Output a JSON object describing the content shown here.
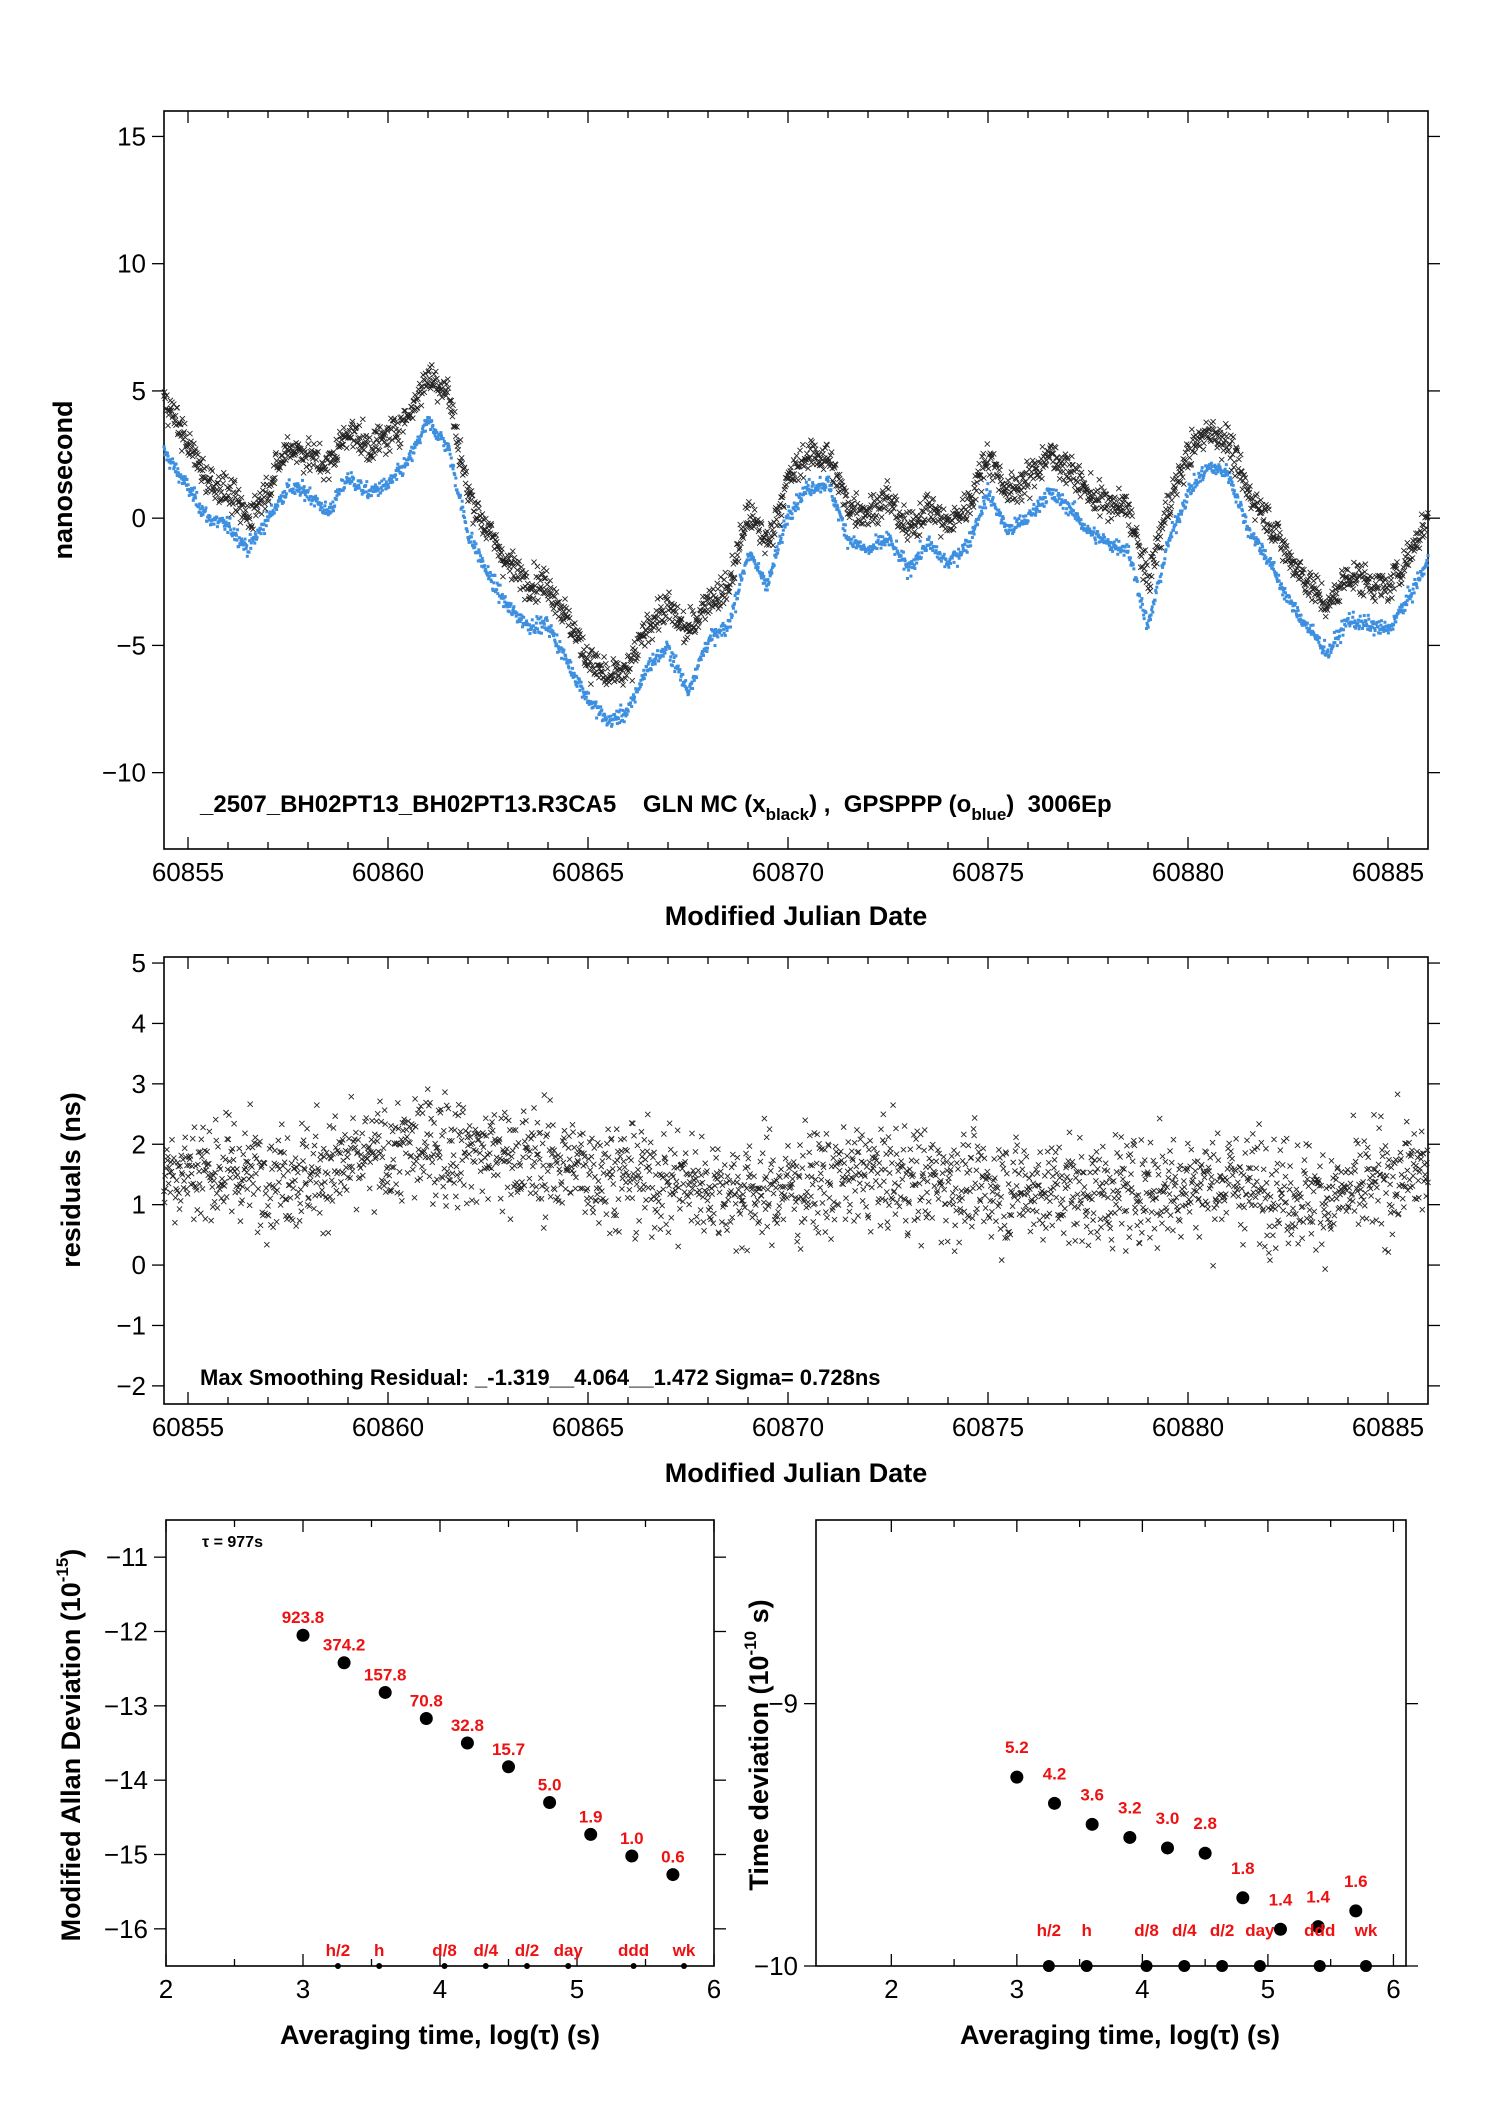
{
  "chart_data": [
    {
      "type": "scatter",
      "xlabel": "Modified Julian Date",
      "ylabel": "nanosecond",
      "xlim": [
        60854.4,
        60886.0
      ],
      "ylim": [
        -13,
        16
      ],
      "xticks": [
        60855,
        60860,
        60865,
        60870,
        60875,
        60880,
        60885
      ],
      "yticks": [
        -10,
        -5,
        0,
        5,
        10,
        15
      ],
      "annotation": {
        "prefix": "_2507_BH02PT13_BH02PT13.R3CA5    GLN MC (x",
        "sub1": "black",
        "mid": ") ,  GPSPPP (o",
        "sub2": "blue",
        "suffix": ")  3006Ep"
      },
      "series": [
        {
          "name": "GLN MC",
          "marker": "x",
          "color": "#222222",
          "points": [
            [
              60854.4,
              4.8
            ],
            [
              60855.0,
              2.9
            ],
            [
              60855.5,
              1.5
            ],
            [
              60856.0,
              1.0
            ],
            [
              60856.5,
              0.0
            ],
            [
              60857.0,
              1.2
            ],
            [
              60857.5,
              2.8
            ],
            [
              60858.0,
              2.5
            ],
            [
              60858.5,
              2.0
            ],
            [
              60859.0,
              3.5
            ],
            [
              60859.5,
              2.8
            ],
            [
              60860.0,
              3.2
            ],
            [
              60860.5,
              4.0
            ],
            [
              60861.0,
              5.6
            ],
            [
              60861.5,
              5.0
            ],
            [
              60862.0,
              1.0
            ],
            [
              60862.5,
              -0.5
            ],
            [
              60863.0,
              -1.8
            ],
            [
              60863.5,
              -2.5
            ],
            [
              60864.0,
              -2.6
            ],
            [
              60864.5,
              -4.0
            ],
            [
              60865.0,
              -5.5
            ],
            [
              60865.5,
              -6.3
            ],
            [
              60866.0,
              -6.0
            ],
            [
              60866.5,
              -4.2
            ],
            [
              60867.0,
              -3.5
            ],
            [
              60867.5,
              -4.5
            ],
            [
              60868.0,
              -3.2
            ],
            [
              60868.5,
              -2.8
            ],
            [
              60869.0,
              0.2
            ],
            [
              60869.5,
              -1.0
            ],
            [
              60870.0,
              1.5
            ],
            [
              60870.5,
              2.5
            ],
            [
              60871.0,
              2.4
            ],
            [
              60871.5,
              0.5
            ],
            [
              60872.0,
              0.2
            ],
            [
              60872.5,
              0.8
            ],
            [
              60873.0,
              -0.5
            ],
            [
              60873.5,
              0.5
            ],
            [
              60874.0,
              -0.3
            ],
            [
              60874.5,
              0.5
            ],
            [
              60875.0,
              2.5
            ],
            [
              60875.5,
              1.0
            ],
            [
              60876.0,
              1.5
            ],
            [
              60876.5,
              2.5
            ],
            [
              60877.0,
              2.0
            ],
            [
              60877.5,
              1.0
            ],
            [
              60878.0,
              0.5
            ],
            [
              60878.5,
              0.4
            ],
            [
              60879.0,
              -2.5
            ],
            [
              60879.5,
              0.5
            ],
            [
              60880.0,
              2.5
            ],
            [
              60880.5,
              3.5
            ],
            [
              60881.0,
              3.0
            ],
            [
              60881.5,
              1.0
            ],
            [
              60882.0,
              0.0
            ],
            [
              60882.5,
              -1.5
            ],
            [
              60883.0,
              -2.5
            ],
            [
              60883.5,
              -3.5
            ],
            [
              60884.0,
              -2.2
            ],
            [
              60884.5,
              -2.5
            ],
            [
              60885.0,
              -2.8
            ],
            [
              60885.5,
              -1.5
            ],
            [
              60886.0,
              0.0
            ]
          ]
        },
        {
          "name": "GPSPPP",
          "marker": "o",
          "color": "#3d8fe0",
          "points": [
            [
              60854.4,
              2.6
            ],
            [
              60855.0,
              1.2
            ],
            [
              60855.5,
              0.0
            ],
            [
              60856.0,
              -0.3
            ],
            [
              60856.5,
              -1.2
            ],
            [
              60857.0,
              0.0
            ],
            [
              60857.5,
              1.2
            ],
            [
              60858.0,
              1.0
            ],
            [
              60858.5,
              0.2
            ],
            [
              60859.0,
              1.6
            ],
            [
              60859.5,
              1.0
            ],
            [
              60860.0,
              1.3
            ],
            [
              60860.5,
              2.2
            ],
            [
              60861.0,
              3.8
            ],
            [
              60861.5,
              2.8
            ],
            [
              60862.0,
              -0.6
            ],
            [
              60862.5,
              -2.2
            ],
            [
              60863.0,
              -3.5
            ],
            [
              60863.5,
              -4.2
            ],
            [
              60864.0,
              -4.2
            ],
            [
              60864.5,
              -5.7
            ],
            [
              60865.0,
              -7.1
            ],
            [
              60865.5,
              -8.0
            ],
            [
              60866.0,
              -7.6
            ],
            [
              60866.5,
              -5.8
            ],
            [
              60867.0,
              -5.1
            ],
            [
              60867.5,
              -6.8
            ],
            [
              60868.0,
              -4.8
            ],
            [
              60868.5,
              -4.3
            ],
            [
              60869.0,
              -1.4
            ],
            [
              60869.5,
              -2.6
            ],
            [
              60870.0,
              0.2
            ],
            [
              60870.5,
              1.2
            ],
            [
              60871.0,
              1.4
            ],
            [
              60871.5,
              -0.8
            ],
            [
              60872.0,
              -1.3
            ],
            [
              60872.5,
              -0.8
            ],
            [
              60873.0,
              -2.0
            ],
            [
              60873.5,
              -1.0
            ],
            [
              60874.0,
              -1.8
            ],
            [
              60874.5,
              -1.0
            ],
            [
              60875.0,
              1.0
            ],
            [
              60875.5,
              -0.5
            ],
            [
              60876.0,
              0.0
            ],
            [
              60876.5,
              1.0
            ],
            [
              60877.0,
              0.5
            ],
            [
              60877.5,
              -0.5
            ],
            [
              60878.0,
              -1.0
            ],
            [
              60878.5,
              -1.2
            ],
            [
              60879.0,
              -4.3
            ],
            [
              60879.5,
              -1.0
            ],
            [
              60880.0,
              1.0
            ],
            [
              60880.5,
              2.0
            ],
            [
              60881.0,
              1.8
            ],
            [
              60881.5,
              -0.4
            ],
            [
              60882.0,
              -1.6
            ],
            [
              60882.5,
              -3.2
            ],
            [
              60883.0,
              -4.3
            ],
            [
              60883.5,
              -5.3
            ],
            [
              60884.0,
              -4.0
            ],
            [
              60884.5,
              -4.2
            ],
            [
              60885.0,
              -4.4
            ],
            [
              60885.5,
              -3.2
            ],
            [
              60886.0,
              -1.7
            ]
          ]
        }
      ]
    },
    {
      "type": "scatter",
      "xlabel": "Modified Julian Date",
      "ylabel": "residuals (ns)",
      "xlim": [
        60854.4,
        60886.0
      ],
      "ylim": [
        -2.3,
        5.1
      ],
      "xticks": [
        60855,
        60860,
        60865,
        60870,
        60875,
        60880,
        60885
      ],
      "yticks": [
        -2,
        -1,
        0,
        1,
        2,
        3,
        4,
        5
      ],
      "annotation": "Max Smoothing Residual: _-1.319__4.064__1.472  Sigma= 0.728ns",
      "series": [
        {
          "name": "residuals",
          "marker": "x",
          "color": "#222222",
          "trend": [
            [
              60854.4,
              1.6
            ],
            [
              60858.0,
              1.5
            ],
            [
              60861.0,
              2.0
            ],
            [
              60863.0,
              1.8
            ],
            [
              60866.0,
              1.5
            ],
            [
              60869.0,
              1.2
            ],
            [
              60872.0,
              1.5
            ],
            [
              60875.0,
              1.3
            ],
            [
              60878.0,
              1.2
            ],
            [
              60881.0,
              1.4
            ],
            [
              60883.5,
              1.1
            ],
            [
              60886.0,
              1.6
            ]
          ],
          "sigma": 0.728,
          "min": -1.319,
          "max": 4.064
        }
      ]
    },
    {
      "type": "scatter",
      "xlabel": "Averaging time, log(τ) (s)",
      "ylabel": "Modified Allan Deviation (10-15)",
      "xlim": [
        2,
        6
      ],
      "ylim": [
        -16.5,
        -10.5
      ],
      "xticks": [
        2,
        3,
        4,
        5,
        6
      ],
      "yticks": [
        -16,
        -15,
        -14,
        -13,
        -12,
        -11
      ],
      "note": "τ = 977s",
      "points": [
        {
          "x": 3.0,
          "y": -12.05,
          "label": "923.8"
        },
        {
          "x": 3.3,
          "y": -12.42,
          "label": "374.2"
        },
        {
          "x": 3.6,
          "y": -12.82,
          "label": "157.8"
        },
        {
          "x": 3.9,
          "y": -13.17,
          "label": "70.8"
        },
        {
          "x": 4.2,
          "y": -13.5,
          "label": "32.8"
        },
        {
          "x": 4.5,
          "y": -13.82,
          "label": "15.7"
        },
        {
          "x": 4.8,
          "y": -14.3,
          "label": "5.0"
        },
        {
          "x": 5.1,
          "y": -14.73,
          "label": "1.9"
        },
        {
          "x": 5.4,
          "y": -15.02,
          "label": "1.0"
        },
        {
          "x": 5.7,
          "y": -15.27,
          "label": "0.6"
        }
      ],
      "markers": [
        {
          "x": 3.255,
          "label": "h/2"
        },
        {
          "x": 3.556,
          "label": "h"
        },
        {
          "x": 4.033,
          "label": "d/8"
        },
        {
          "x": 4.334,
          "label": "d/4"
        },
        {
          "x": 4.635,
          "label": "d/2"
        },
        {
          "x": 4.936,
          "label": "day"
        },
        {
          "x": 5.413,
          "label": "ddd"
        },
        {
          "x": 5.781,
          "label": "wk"
        }
      ]
    },
    {
      "type": "scatter",
      "xlabel": "Averaging time, log(τ) (s)",
      "ylabel": "Time deviation (10-10 s)",
      "xlim": [
        1.4,
        6.1
      ],
      "ylim": [
        -10,
        -8.3
      ],
      "xticks": [
        2,
        3,
        4,
        5,
        6
      ],
      "yticks": [
        -10,
        -9
      ],
      "points": [
        {
          "x": 3.0,
          "y": -9.28,
          "label": "5.2"
        },
        {
          "x": 3.3,
          "y": -9.38,
          "label": "4.2"
        },
        {
          "x": 3.6,
          "y": -9.46,
          "label": "3.6"
        },
        {
          "x": 3.9,
          "y": -9.51,
          "label": "3.2"
        },
        {
          "x": 4.2,
          "y": -9.55,
          "label": "3.0"
        },
        {
          "x": 4.5,
          "y": -9.57,
          "label": "2.8"
        },
        {
          "x": 4.8,
          "y": -9.74,
          "label": "1.8"
        },
        {
          "x": 5.1,
          "y": -9.86,
          "label": "1.4"
        },
        {
          "x": 5.4,
          "y": -9.85,
          "label": "1.4"
        },
        {
          "x": 5.7,
          "y": -9.79,
          "label": "1.6"
        }
      ],
      "markers": [
        {
          "x": 3.255,
          "label": "h/2"
        },
        {
          "x": 3.556,
          "label": "h"
        },
        {
          "x": 4.033,
          "label": "d/8"
        },
        {
          "x": 4.334,
          "label": "d/4"
        },
        {
          "x": 4.635,
          "label": "d/2"
        },
        {
          "x": 4.936,
          "label": "day"
        },
        {
          "x": 5.413,
          "label": "ddd"
        },
        {
          "x": 5.781,
          "label": "wk"
        }
      ]
    }
  ]
}
